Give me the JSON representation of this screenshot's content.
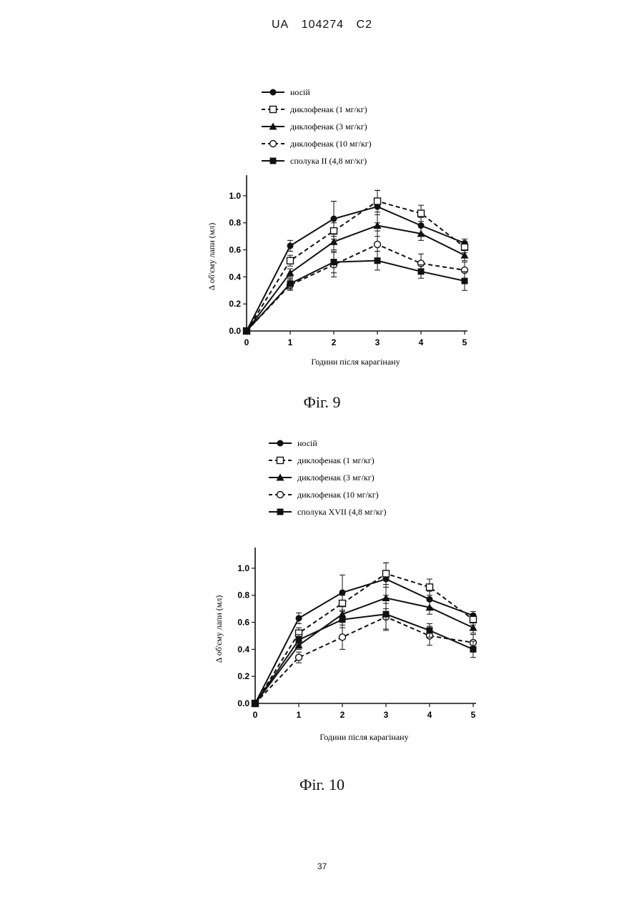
{
  "header": {
    "country": "UA",
    "number": "104274",
    "kind": "C2"
  },
  "footer": {
    "page": "37"
  },
  "figures": [
    {
      "caption": "Фіг. 9"
    },
    {
      "caption": "Фіг. 10"
    }
  ],
  "chart_data": [
    {
      "type": "line",
      "title": "",
      "xlabel": "Години після карагінану",
      "ylabel": "Δ   об'єму лапи   (мл)",
      "x": [
        0,
        1,
        2,
        3,
        4,
        5
      ],
      "xlim": [
        0,
        5
      ],
      "ylim": [
        0.0,
        1.1
      ],
      "xticks": [
        "0",
        "1",
        "2",
        "3",
        "4",
        "5"
      ],
      "yticks": [
        "0.0",
        "0.2",
        "0.4",
        "0.6",
        "0.8",
        "1.0"
      ],
      "grid": false,
      "legend_position": "top",
      "series": [
        {
          "name": "носій",
          "marker": "filled-circle",
          "line": "solid",
          "values": [
            0.0,
            0.63,
            0.83,
            0.92,
            0.78,
            0.65
          ],
          "err": [
            0,
            0.04,
            0.13,
            0.12,
            0.06,
            0.03
          ]
        },
        {
          "name": "диклофенак (1 мг/кг)",
          "marker": "open-square",
          "line": "dashed",
          "values": [
            0.0,
            0.52,
            0.74,
            0.96,
            0.87,
            0.62
          ],
          "err": [
            0,
            0.04,
            0.06,
            0.08,
            0.06,
            0.04
          ]
        },
        {
          "name": "диклофенак (3 мг/кг)",
          "marker": "filled-triangle",
          "line": "solid",
          "values": [
            0.0,
            0.43,
            0.66,
            0.78,
            0.72,
            0.56
          ],
          "err": [
            0,
            0.03,
            0.06,
            0.08,
            0.05,
            0.04
          ]
        },
        {
          "name": "диклофенак (10 мг/кг)",
          "marker": "open-circle",
          "line": "dashed",
          "values": [
            0.0,
            0.34,
            0.49,
            0.64,
            0.5,
            0.45
          ],
          "err": [
            0,
            0.04,
            0.09,
            0.1,
            0.07,
            0.06
          ]
        },
        {
          "name": "сполука II (4,8 мг/кг)",
          "marker": "filled-square",
          "line": "solid",
          "values": [
            0.0,
            0.35,
            0.51,
            0.52,
            0.44,
            0.37
          ],
          "err": [
            0,
            0.04,
            0.08,
            0.07,
            0.05,
            0.07
          ]
        }
      ]
    },
    {
      "type": "line",
      "title": "",
      "xlabel": "Години після карагінану",
      "ylabel": "Δ   об'єму лапи   (мл)",
      "x": [
        0,
        1,
        2,
        3,
        4,
        5
      ],
      "xlim": [
        0,
        5
      ],
      "ylim": [
        0.0,
        1.1
      ],
      "xticks": [
        "0",
        "1",
        "2",
        "3",
        "4",
        "5"
      ],
      "yticks": [
        "0.0",
        "0.2",
        "0.4",
        "0.6",
        "0.8",
        "1.0"
      ],
      "grid": false,
      "legend_position": "top",
      "series": [
        {
          "name": "носій",
          "marker": "filled-circle",
          "line": "solid",
          "values": [
            0.0,
            0.63,
            0.82,
            0.92,
            0.77,
            0.65
          ],
          "err": [
            0,
            0.04,
            0.13,
            0.12,
            0.06,
            0.03
          ]
        },
        {
          "name": "диклофенак (1 мг/кг)",
          "marker": "open-square",
          "line": "dashed",
          "values": [
            0.0,
            0.52,
            0.74,
            0.96,
            0.86,
            0.62
          ],
          "err": [
            0,
            0.04,
            0.06,
            0.08,
            0.06,
            0.04
          ]
        },
        {
          "name": "диклофенак (3 мг/кг)",
          "marker": "filled-triangle",
          "line": "solid",
          "values": [
            0.0,
            0.43,
            0.66,
            0.78,
            0.71,
            0.56
          ],
          "err": [
            0,
            0.03,
            0.06,
            0.08,
            0.05,
            0.04
          ]
        },
        {
          "name": "диклофенак (10 мг/кг)",
          "marker": "open-circle",
          "line": "dashed",
          "values": [
            0.0,
            0.34,
            0.49,
            0.64,
            0.5,
            0.45
          ],
          "err": [
            0,
            0.04,
            0.09,
            0.1,
            0.07,
            0.06
          ]
        },
        {
          "name": "сполука XVII (4,8 мг/кг)",
          "marker": "filled-square",
          "line": "solid",
          "values": [
            0.0,
            0.47,
            0.62,
            0.66,
            0.54,
            0.4
          ],
          "err": [
            0,
            0.04,
            0.06,
            0.11,
            0.05,
            0.06
          ]
        }
      ]
    }
  ]
}
